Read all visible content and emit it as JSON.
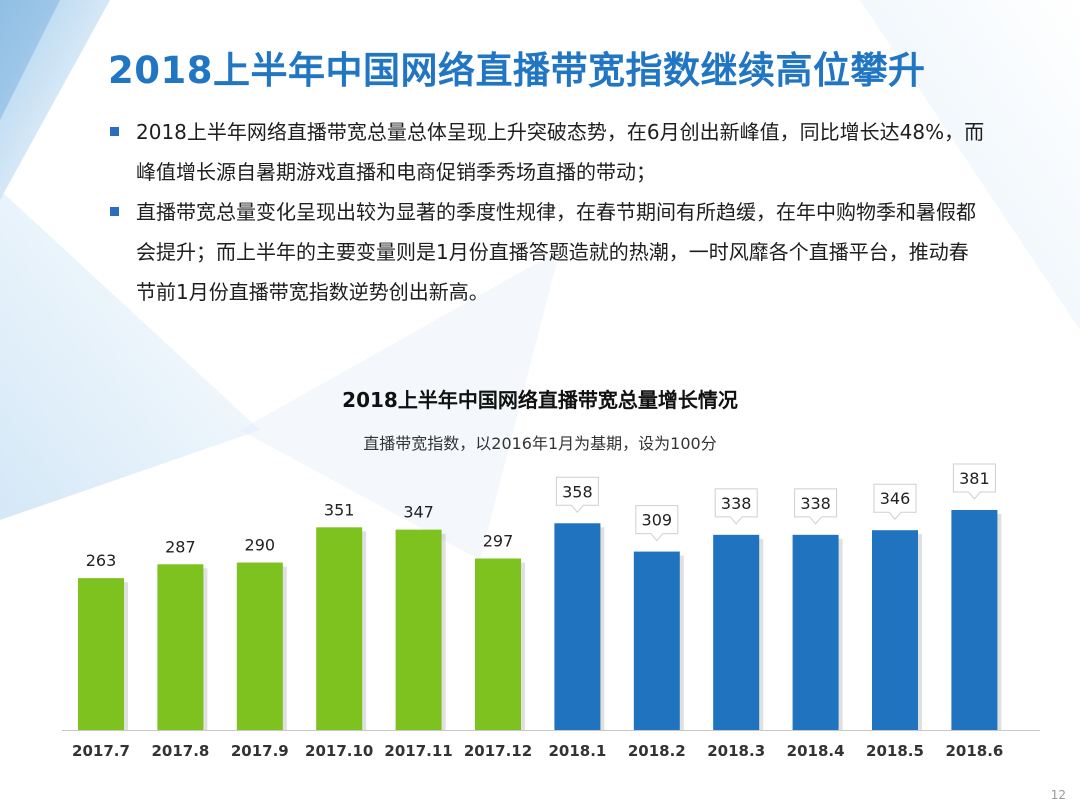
{
  "slide": {
    "title": "2018上半年中国网络直播带宽指数继续高位攀升",
    "bullets": [
      "2018上半年网络直播带宽总量总体呈现上升突破态势，在6月创出新峰值，同比增长达48%，而峰值增长源自暑期游戏直播和电商促销季秀场直播的带动；",
      "直播带宽总量变化呈现出较为显著的季度性规律，在春节期间有所趋缓，在年中购物季和暑假都会提升；而上半年的主要变量则是1月份直播答题造就的热潮，一时风靡各个直播平台，推动春节前1月份直播带宽指数逆势创出新高。"
    ],
    "page_number": "12",
    "colors": {
      "title": "#2176c4",
      "bullet_marker": "#2a6fbe",
      "green_bar": "#7dc21f",
      "blue_bar": "#1f73bf"
    }
  },
  "chart_data": {
    "type": "bar",
    "title": "2018上半年中国网络直播带宽总量增长情况",
    "subtitle": "直播带宽指数，以2016年1月为基期，设为100分",
    "xlabel": "",
    "ylabel": "",
    "ylim": [
      0,
      381
    ],
    "grid": false,
    "legend": "none",
    "categories": [
      "2017.7",
      "2017.8",
      "2017.9",
      "2017.10",
      "2017.11",
      "2017.12",
      "2018.1",
      "2018.2",
      "2018.3",
      "2018.4",
      "2018.5",
      "2018.6"
    ],
    "values": [
      263,
      287,
      290,
      351,
      347,
      297,
      358,
      309,
      338,
      338,
      346,
      381
    ],
    "bar_colors": [
      "#7dc21f",
      "#7dc21f",
      "#7dc21f",
      "#7dc21f",
      "#7dc21f",
      "#7dc21f",
      "#1f73bf",
      "#1f73bf",
      "#1f73bf",
      "#1f73bf",
      "#1f73bf",
      "#1f73bf"
    ],
    "label_style": [
      "plain",
      "plain",
      "plain",
      "plain",
      "plain",
      "plain",
      "callout",
      "callout",
      "callout",
      "callout",
      "callout",
      "callout"
    ]
  }
}
